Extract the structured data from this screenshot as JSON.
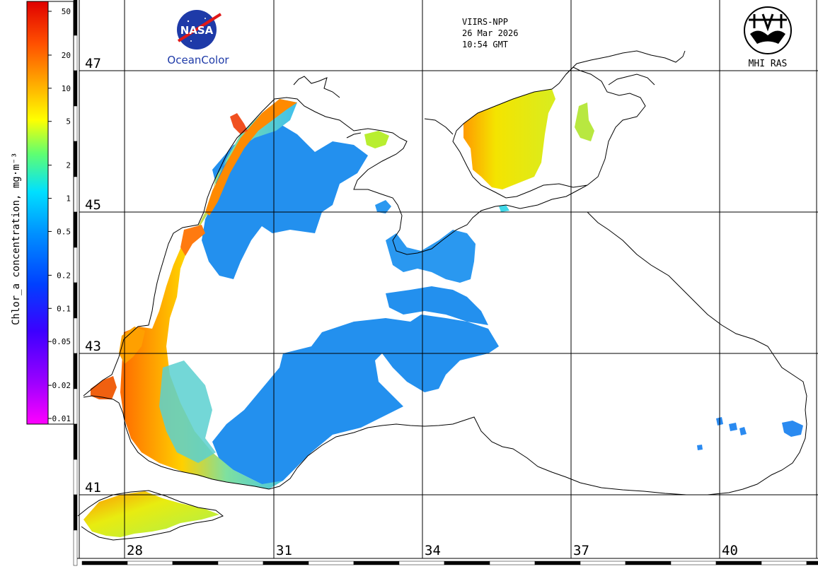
{
  "header": {
    "sensor": "VIIRS-NPP",
    "date": "26 Mar 2026",
    "time": "10:54 GMT"
  },
  "logos": {
    "nasa_text": "NASA",
    "oceancolor_label": "OceanColor",
    "mhi_label": "MHI RAS"
  },
  "colorbar": {
    "title": "Chlor_a concentration, mg·m⁻³",
    "ticks": [
      "50",
      "20",
      "10",
      "5",
      "2",
      "1",
      "0.5",
      "0.2",
      "0.1",
      "0.05",
      "0.02",
      "0.01"
    ],
    "colors": [
      "#ff00ff",
      "#9b00ff",
      "#3c00ff",
      "#0040ff",
      "#0090ff",
      "#00e0ff",
      "#60ff70",
      "#ffff00",
      "#ffb000",
      "#ff5000",
      "#e00000"
    ]
  },
  "grid": {
    "latitudes": [
      "47",
      "45",
      "43",
      "41"
    ],
    "longitudes": [
      "28",
      "31",
      "34",
      "37",
      "40"
    ]
  },
  "map": {
    "colors": {
      "land_line": "#000000",
      "grid_line": "#000000",
      "open_sea": "#1f8ff0",
      "shelf": "#4ec8e8",
      "coastal": "#ffe000",
      "coastal_high": "#ff7a00",
      "azov": "#e6ee20"
    }
  }
}
